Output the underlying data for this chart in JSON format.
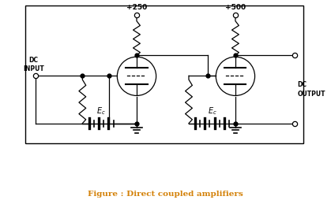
{
  "title": "Figure : Direct coupled amplifiers",
  "title_color": "#d4820a",
  "bg_color": "#ffffff",
  "border_color": "#000000",
  "line_color": "#000000",
  "vcc1": "+250",
  "vcc2": "+500",
  "figsize": [
    4.19,
    2.54
  ],
  "dpi": 100
}
